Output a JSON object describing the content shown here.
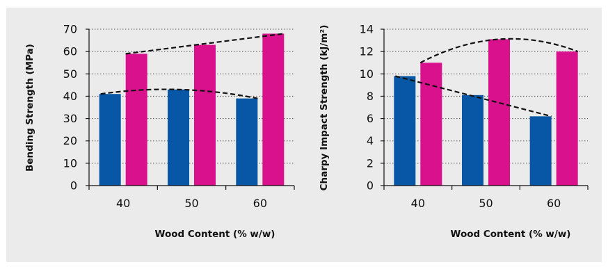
{
  "chart_data": [
    {
      "type": "bar",
      "categories": [
        "40",
        "50",
        "60"
      ],
      "series": [
        {
          "values": [
            41,
            43,
            39
          ],
          "color": "#0757a6"
        },
        {
          "values": [
            59,
            63,
            68
          ],
          "color": "#d9118c"
        }
      ],
      "trendlines": [
        {
          "shape": "curve",
          "points": [
            41,
            43,
            39
          ],
          "style": "dashed"
        },
        {
          "shape": "straight",
          "points": [
            59,
            63,
            68
          ],
          "style": "dashed"
        }
      ],
      "xlabel": "Wood Content (% w/w)",
      "ylabel": "Bending Strength (MPa)",
      "ylim": [
        0,
        70
      ],
      "yticks": [
        0,
        10,
        20,
        30,
        40,
        50,
        60,
        70
      ],
      "grid": "horizontal-dotted"
    },
    {
      "type": "bar",
      "categories": [
        "40",
        "50",
        "60"
      ],
      "series": [
        {
          "values": [
            9.8,
            8.1,
            6.2
          ],
          "color": "#0757a6"
        },
        {
          "values": [
            11.0,
            13.1,
            12.0
          ],
          "color": "#d9118c"
        }
      ],
      "trendlines": [
        {
          "shape": "straight",
          "points": [
            9.8,
            8.1,
            6.2
          ],
          "style": "dashed"
        },
        {
          "shape": "curve",
          "points": [
            11.0,
            13.1,
            12.0
          ],
          "style": "dashed"
        }
      ],
      "xlabel": "Wood Content (% w/w)",
      "ylabel": "Charpy Impact Strength (kJ/m²)",
      "ylim": [
        0,
        14
      ],
      "yticks": [
        0,
        2,
        4,
        6,
        8,
        10,
        12,
        14
      ],
      "grid": "horizontal-dotted"
    }
  ]
}
